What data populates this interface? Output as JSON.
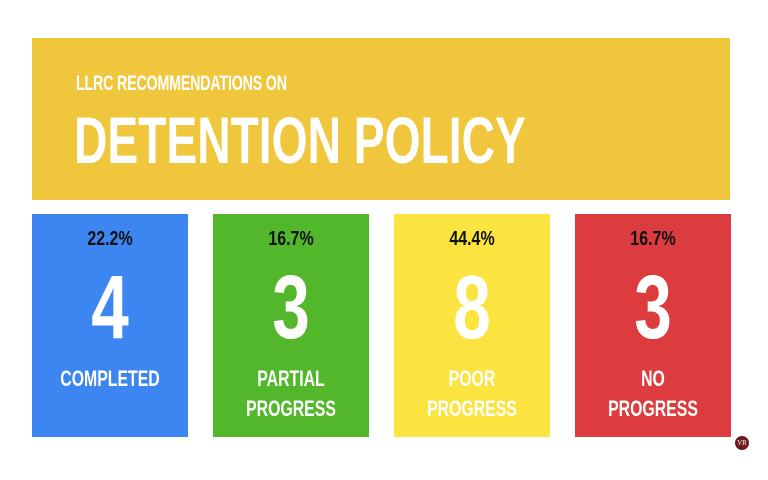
{
  "header": {
    "subtitle": "LLRC RECOMMENDATIONS ON",
    "title": "DETENTION POLICY"
  },
  "cards": [
    {
      "percent": "22.2%",
      "count": "4",
      "label": "COMPLETED",
      "color": "#3d85f0"
    },
    {
      "percent": "16.7%",
      "count": "3",
      "label": "PARTIAL\nPROGRESS",
      "color": "#53b72b"
    },
    {
      "percent": "44.4%",
      "count": "8",
      "label": "POOR\nPROGRESS",
      "color": "#fbe43f"
    },
    {
      "percent": "16.7%",
      "count": "3",
      "label": "NO\nPROGRESS",
      "color": "#dc3c3e"
    }
  ],
  "logo": "VR"
}
